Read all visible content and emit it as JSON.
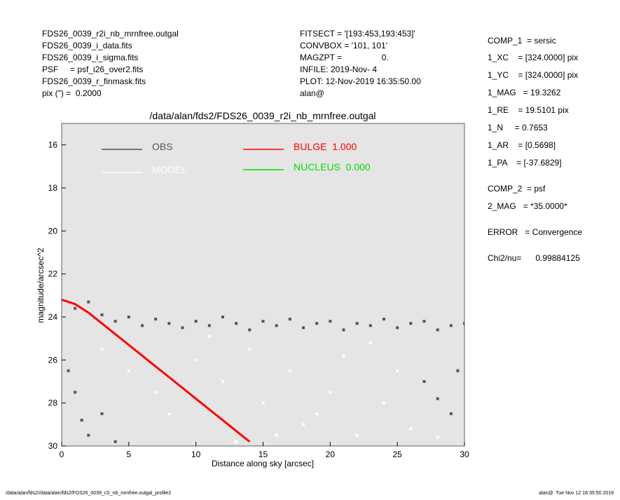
{
  "header": {
    "left": [
      "FDS26_0039_r2i_nb_mrnfree.outgal",
      "FDS26_0039_i_data.fits",
      "FDS26_0039_i_sigma.fits",
      "PSF     = psf_i26_over2.fits",
      "FDS26_0039_r_finmask.fits",
      "pix (\") =  0.2000"
    ],
    "center": [
      "FITSECT = '[193:453,193:453]'",
      "CONVBOX = '101, 101'",
      "MAGZPT =                 0.",
      "INFILE: 2019-Nov- 4",
      "PLOT: 12-Nov-2019 16:35:50.00",
      "alan@"
    ]
  },
  "parameters": [
    "COMP_1  = sersic",
    "1_XC    = [324.0000] pix",
    "1_YC    = [324.0000] pix",
    "1_MAG   = 19.3262",
    "1_RE    = 19.5101 pix",
    "1_N     = 0.7653",
    "1_AR    = [0.5698]",
    "1_PA    = [-37.6829]",
    "COMP_2  = psf",
    "2_MAG   = *35.0000*",
    "ERROR   = Convergence",
    "Chi2/nu=      0.99884125"
  ],
  "footer": {
    "left": "/data/alan/fds2//data/alan/fds2/FDS26_0039_r2i_nb_mrnfree.outgal_profile2",
    "right": "alan@  Tue Nov 12 16:35:50 2019"
  },
  "chart_data": {
    "type": "scatter",
    "title": "/data/alan/fds2/FDS26_0039_r2i_nb_mrnfree.outgal",
    "x_label": "Distance along sky [arcsec]",
    "y_label": "magnitude/arcsec^2",
    "xlim": [
      0,
      30
    ],
    "ylim": [
      30,
      15
    ],
    "xticks": [
      0,
      5,
      10,
      15,
      20,
      25,
      30
    ],
    "yticks": [
      16,
      18,
      20,
      22,
      24,
      26,
      28,
      30
    ],
    "background": "#e5e5e5",
    "series": [
      {
        "name": "OBS",
        "color": "#555555",
        "mark": "points",
        "x": [
          1,
          2,
          3,
          4,
          5,
          6,
          7,
          8,
          9,
          10,
          11,
          12,
          13,
          14,
          15,
          16,
          17,
          18,
          19,
          20,
          21,
          22,
          23,
          24,
          25,
          26,
          27,
          28,
          29,
          30,
          0.5,
          1,
          1.5,
          2,
          3,
          4,
          27,
          28,
          29,
          29.5
        ],
        "values": [
          23.6,
          23.3,
          23.9,
          24.2,
          24.0,
          24.4,
          24.1,
          24.3,
          24.5,
          24.2,
          24.4,
          24.0,
          24.3,
          24.6,
          24.2,
          24.4,
          24.1,
          24.5,
          24.3,
          24.2,
          24.6,
          24.3,
          24.4,
          24.1,
          24.5,
          24.3,
          24.2,
          24.6,
          24.4,
          24.3,
          26.5,
          27.5,
          28.8,
          29.5,
          28.5,
          29.8,
          27.0,
          27.8,
          28.5,
          26.5
        ]
      },
      {
        "name": "MODEL",
        "color": "#ffffff",
        "mark": "points",
        "x": [
          3,
          5,
          7,
          8,
          10,
          12,
          14,
          15,
          17,
          18,
          20,
          21,
          22,
          24,
          25,
          26,
          28,
          19,
          16,
          13,
          11,
          23
        ],
        "values": [
          25.5,
          26.5,
          27.5,
          28.5,
          26.0,
          27.0,
          25.5,
          28.0,
          26.5,
          29.0,
          27.5,
          25.8,
          29.5,
          28.0,
          26.5,
          29.2,
          29.6,
          28.5,
          29.5,
          29.8,
          24.9,
          25.2
        ]
      },
      {
        "name": "BULGE  1.000",
        "color": "#ff0000",
        "mark": "line",
        "x": [
          0,
          1,
          2,
          3,
          4,
          5,
          6,
          7,
          8,
          9,
          10,
          11,
          12,
          13,
          14
        ],
        "values": [
          23.2,
          23.4,
          23.8,
          24.3,
          24.8,
          25.3,
          25.8,
          26.3,
          26.8,
          27.3,
          27.8,
          28.3,
          28.8,
          29.3,
          29.8
        ]
      },
      {
        "name": "NUCLEUS  0.000",
        "color": "#00dd00",
        "mark": "line",
        "x": [],
        "values": []
      }
    ]
  }
}
